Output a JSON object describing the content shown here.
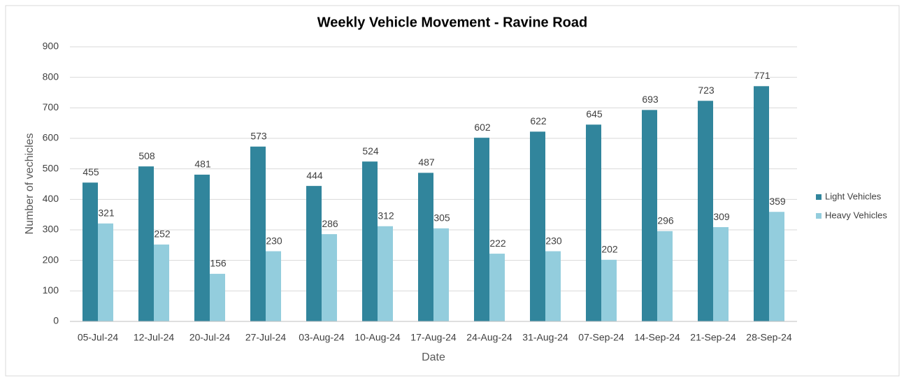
{
  "chart_data": {
    "type": "bar",
    "title": "Weekly Vehicle Movement - Ravine Road",
    "x_label": "Date",
    "y_label": "Number of vechicles",
    "categories": [
      "05-Jul-24",
      "12-Jul-24",
      "20-Jul-24",
      "27-Jul-24",
      "03-Aug-24",
      "10-Aug-24",
      "17-Aug-24",
      "24-Aug-24",
      "31-Aug-24",
      "07-Sep-24",
      "14-Sep-24",
      "21-Sep-24",
      "28-Sep-24"
    ],
    "series": [
      {
        "name": "Light Vehicles",
        "color": "#31859c",
        "values": [
          455,
          508,
          481,
          573,
          444,
          524,
          487,
          602,
          622,
          645,
          693,
          723,
          771
        ]
      },
      {
        "name": "Heavy Vehicles",
        "color": "#93cddd",
        "values": [
          321,
          252,
          156,
          230,
          286,
          312,
          305,
          222,
          230,
          202,
          296,
          309,
          359
        ]
      }
    ],
    "ylim": [
      0,
      900
    ],
    "yticks": [
      0,
      100,
      200,
      300,
      400,
      500,
      600,
      700,
      800,
      900
    ],
    "grid": true,
    "legend": "right"
  }
}
